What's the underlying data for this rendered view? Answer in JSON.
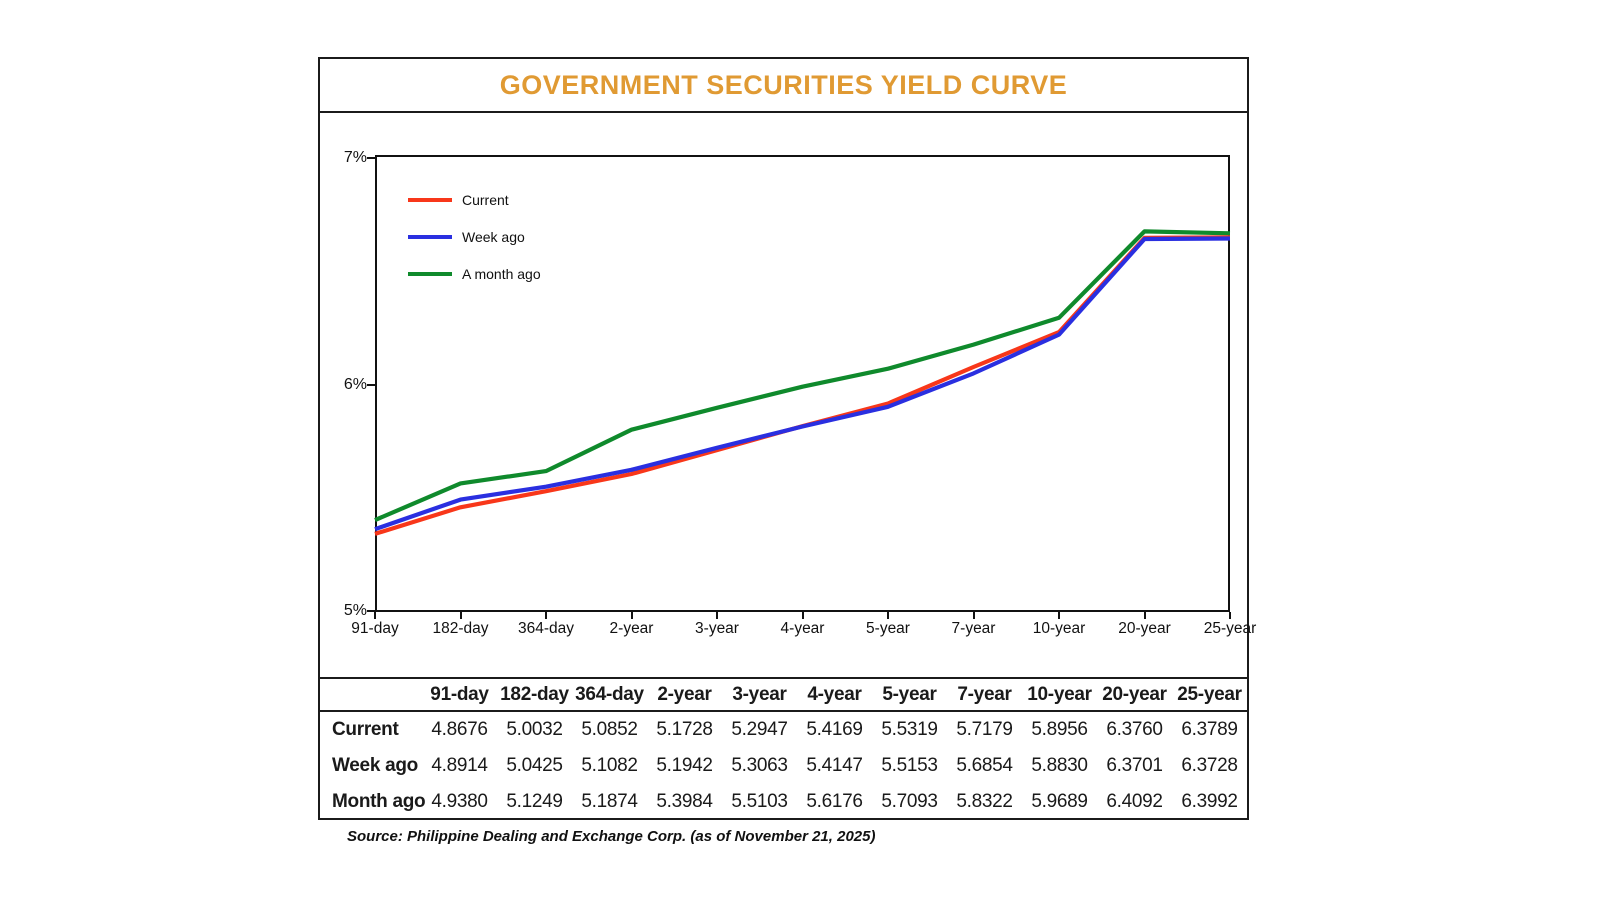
{
  "title": "GOVERNMENT SECURITIES YIELD CURVE",
  "colors": {
    "title_accent": "#E09A33",
    "border": "#1B1B1B",
    "current": "#F8371A",
    "week_ago": "#2A2FE0",
    "month_ago": "#0F8A2C"
  },
  "chart_data": {
    "type": "line",
    "categories": [
      "91-day",
      "182-day",
      "364-day",
      "2-year",
      "3-year",
      "4-year",
      "5-year",
      "7-year",
      "10-year",
      "20-year",
      "25-year"
    ],
    "series": [
      {
        "name": "Current",
        "color": "#F8371A",
        "values": [
          4.8676,
          5.0032,
          5.0852,
          5.1728,
          5.2947,
          5.4169,
          5.5319,
          5.7179,
          5.8956,
          6.376,
          6.3789
        ]
      },
      {
        "name": "Week ago",
        "color": "#2A2FE0",
        "values": [
          4.8914,
          5.0425,
          5.1082,
          5.1942,
          5.3063,
          5.4147,
          5.5153,
          5.6854,
          5.883,
          6.3701,
          6.3728
        ]
      },
      {
        "name": "A month ago",
        "color": "#0F8A2C",
        "values": [
          4.938,
          5.1249,
          5.1874,
          5.3984,
          5.5103,
          5.6176,
          5.7093,
          5.8322,
          5.9689,
          6.4092,
          6.3992
        ]
      }
    ],
    "title": "GOVERNMENT SECURITIES YIELD CURVE",
    "xlabel": "",
    "ylabel": "",
    "y_tick_labels": [
      "7%",
      "6%",
      "5%"
    ],
    "ylim": [
      5,
      7
    ],
    "grid": false,
    "legend_position": "upper-left-inside"
  },
  "table": {
    "col_headers": [
      "91-day",
      "182-day",
      "364-day",
      "2-year",
      "3-year",
      "4-year",
      "5-year",
      "7-year",
      "10-year",
      "20-year",
      "25-year"
    ],
    "rows": [
      {
        "label": "Current",
        "values": [
          "4.8676",
          "5.0032",
          "5.0852",
          "5.1728",
          "5.2947",
          "5.4169",
          "5.5319",
          "5.7179",
          "5.8956",
          "6.3760",
          "6.3789"
        ]
      },
      {
        "label": "Week ago",
        "values": [
          "4.8914",
          "5.0425",
          "5.1082",
          "5.1942",
          "5.3063",
          "5.4147",
          "5.5153",
          "5.6854",
          "5.8830",
          "6.3701",
          "6.3728"
        ]
      },
      {
        "label": "Month ago",
        "values": [
          "4.9380",
          "5.1249",
          "5.1874",
          "5.3984",
          "5.5103",
          "5.6176",
          "5.7093",
          "5.8322",
          "5.9689",
          "6.4092",
          "6.3992"
        ]
      }
    ]
  },
  "source": "Source: Philippine Dealing and Exchange Corp. (as of November 21, 2025)"
}
